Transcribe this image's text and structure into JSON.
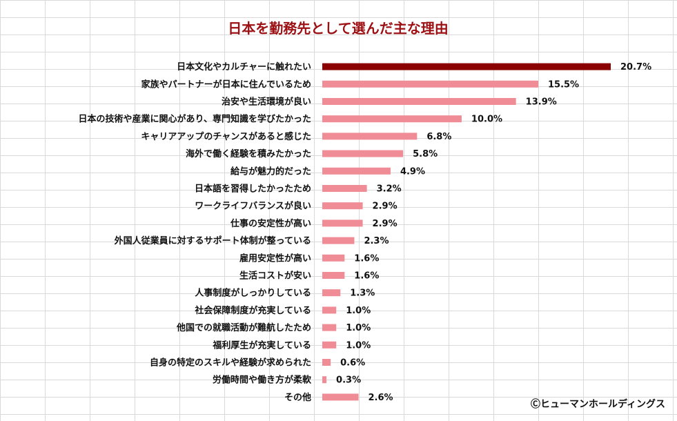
{
  "colors": {
    "background": "#ffffff",
    "grid": "#d9d9d9",
    "highlight_bar": "#8b0000",
    "bar": "#f08c96",
    "title": "#9c0f13",
    "text": "#111111"
  },
  "credit": "Ⓒヒューマンホールディングス",
  "chart_data": {
    "type": "bar",
    "orientation": "horizontal",
    "title": "日本を勤務先として選んだ主な理由",
    "value_suffix": "%",
    "grid": true,
    "highlight_index": 0,
    "categories": [
      "日本文化やカルチャーに触れたい",
      "家族やパートナーが日本に住んでいるため",
      "治安や生活環境が良い",
      "日本の技術や産業に関心があり、専門知識を学びたかった",
      "キャリアアップのチャンスがあると感じた",
      "海外で働く経験を積みたかった",
      "給与が魅力的だった",
      "日本語を習得したかったため",
      "ワークライフバランスが良い",
      "仕事の安定性が高い",
      "外国人従業員に対するサポート体制が整っている",
      "雇用安定性が高い",
      "生活コストが安い",
      "人事制度がしっかりしている",
      "社会保障制度が充実している",
      "他国での就職活動が難航したため",
      "福利厚生が充実している",
      "自身の特定のスキルや経験が求められた",
      "労働時間や働き方が柔軟",
      "その他"
    ],
    "values": [
      20.7,
      15.5,
      13.9,
      10.0,
      6.8,
      5.8,
      4.9,
      3.2,
      2.9,
      2.9,
      2.3,
      1.6,
      1.6,
      1.3,
      1.0,
      1.0,
      1.0,
      0.6,
      0.3,
      2.6
    ],
    "xlim": [
      0,
      20.7
    ]
  }
}
